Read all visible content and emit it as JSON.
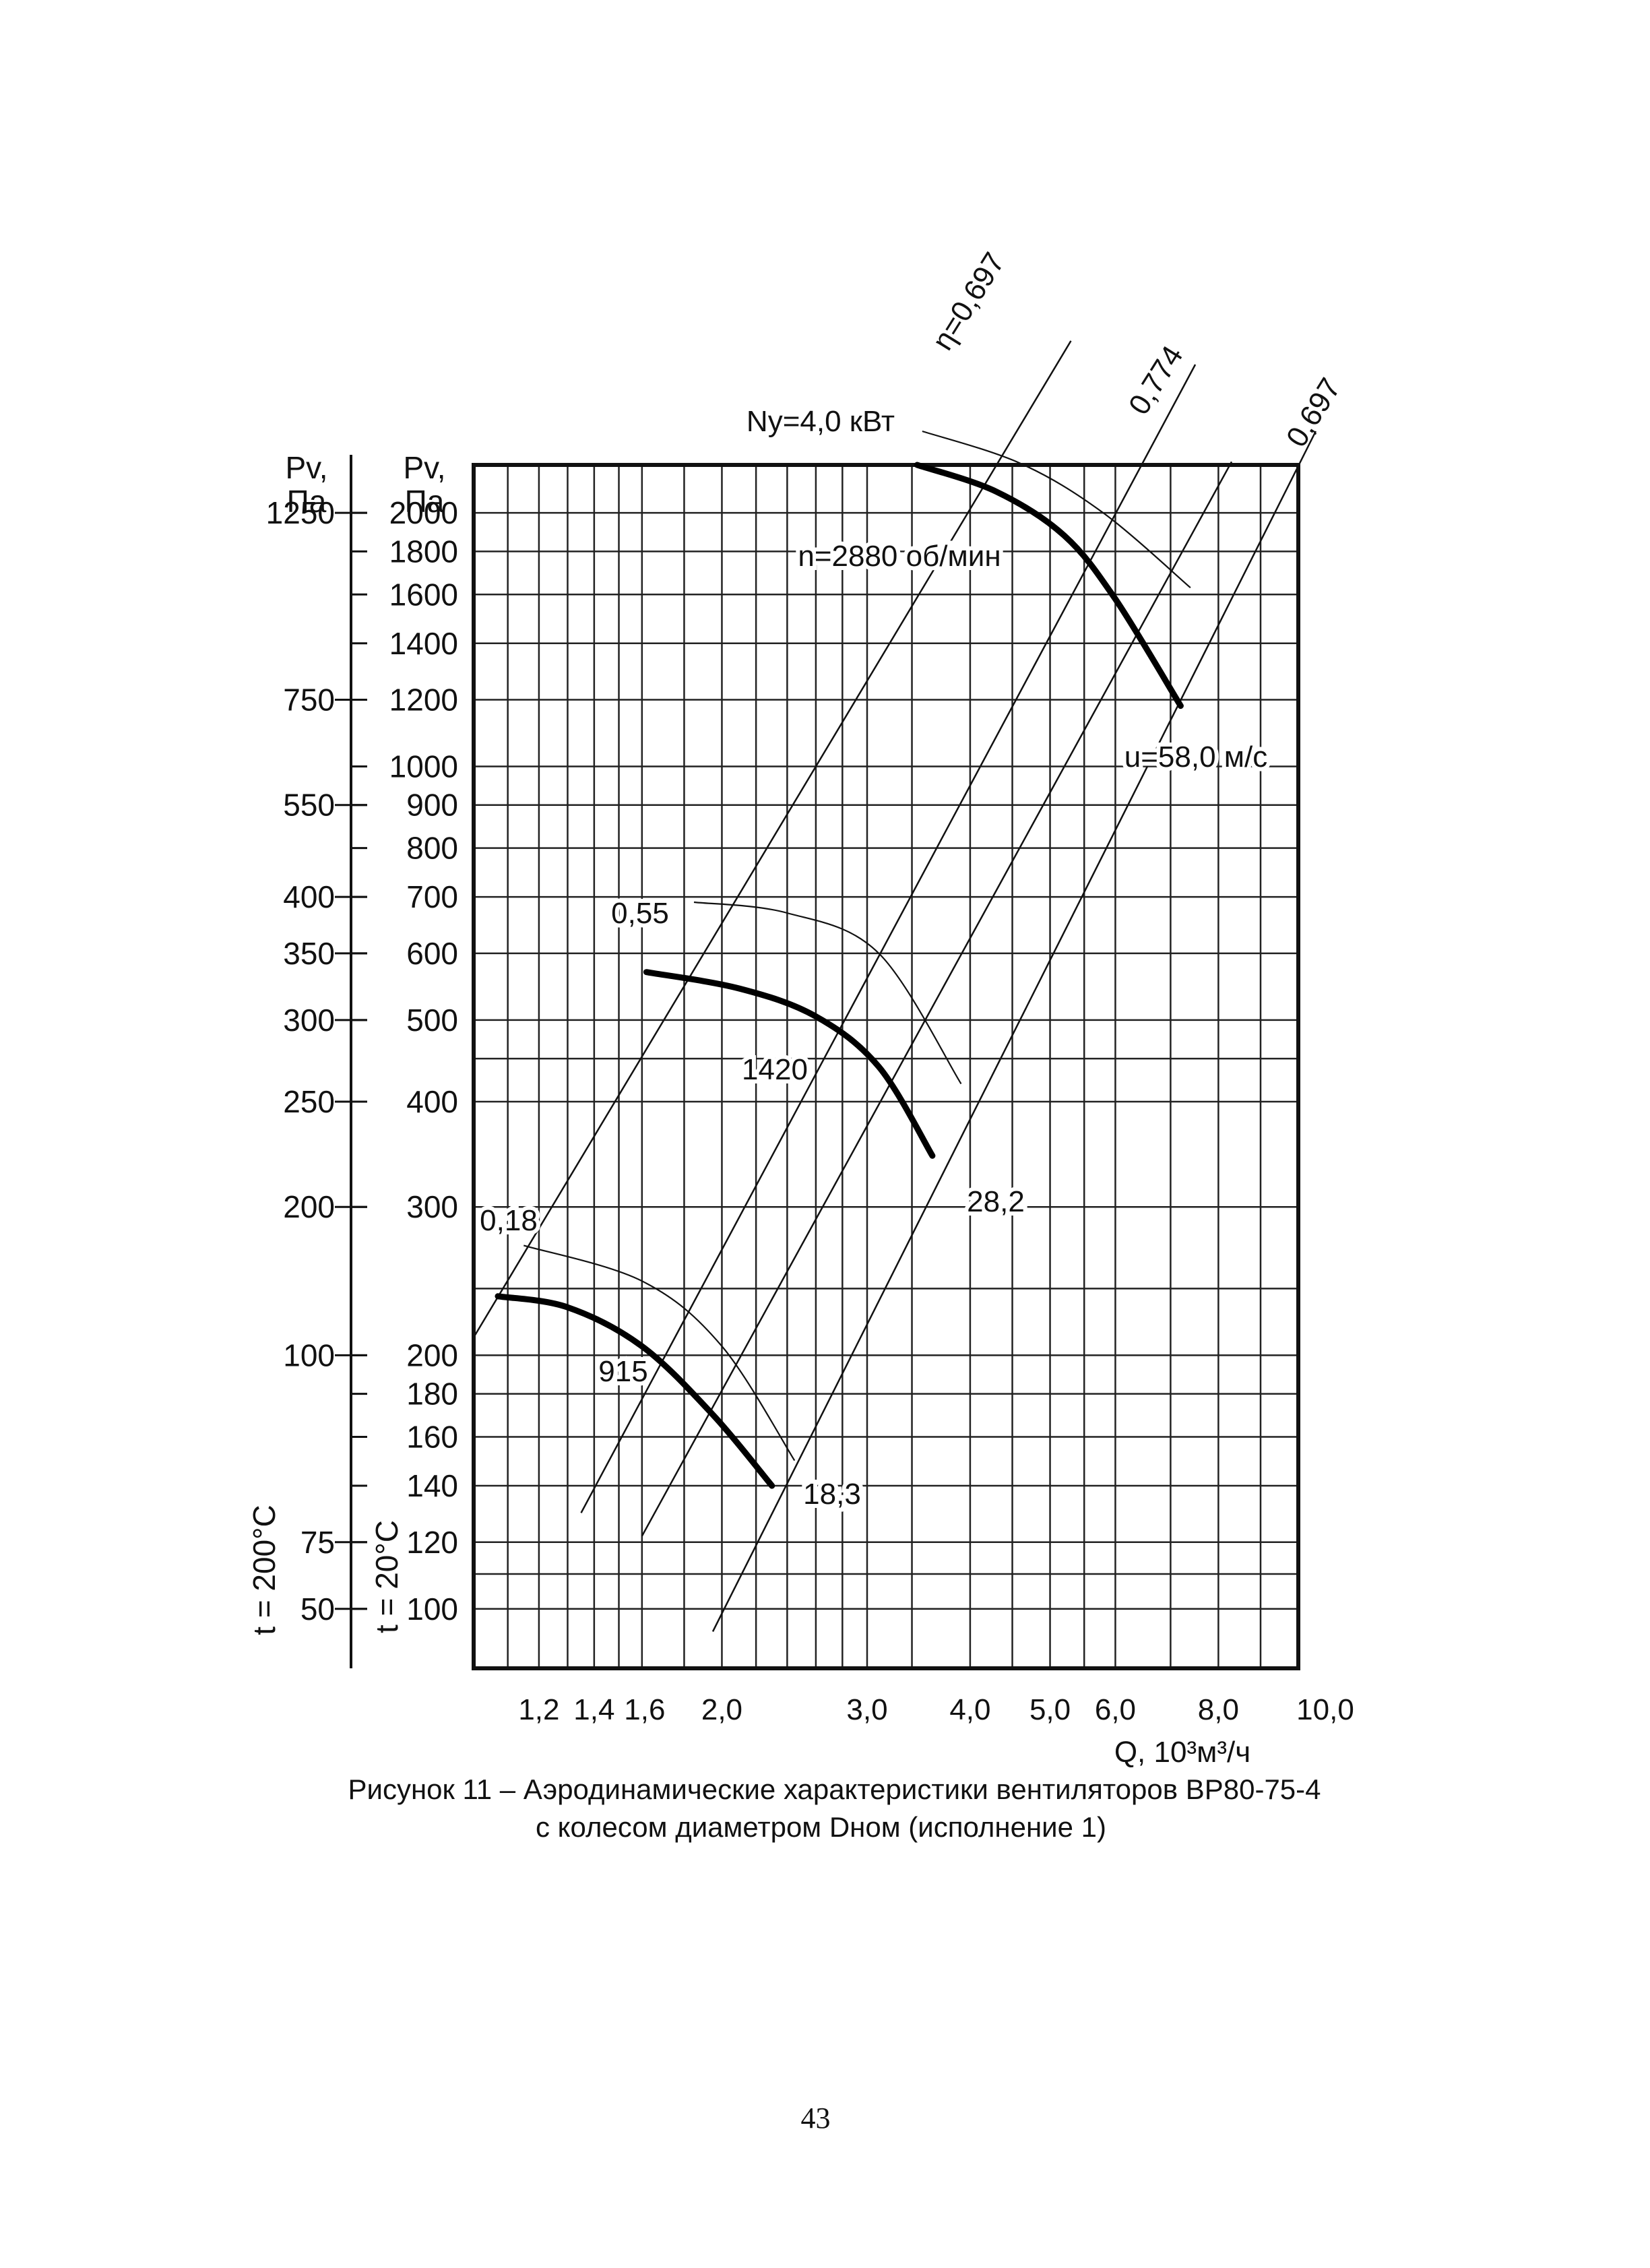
{
  "chart_data": {
    "type": "line",
    "title": "",
    "xlabel": "Q, 10³м³/ч",
    "x_scale": "log",
    "xlim": [
      1.0,
      10.0
    ],
    "x_ticks": [
      {
        "value": 1.2,
        "label": "1,2"
      },
      {
        "value": 1.4,
        "label": "1,4"
      },
      {
        "value": 1.6,
        "label": "1,6"
      },
      {
        "value": 2.0,
        "label": "2,0"
      },
      {
        "value": 3.0,
        "label": "3,0"
      },
      {
        "value": 4.0,
        "label": "4,0"
      },
      {
        "value": 5.0,
        "label": "5,0"
      },
      {
        "value": 6.0,
        "label": "6,0"
      },
      {
        "value": 8.0,
        "label": "8,0"
      },
      {
        "value": 10.0,
        "label": "10,0"
      }
    ],
    "y_scale": "log",
    "ylim": [
      85,
      2280
    ],
    "y_axis_20": {
      "header": "Pv, Па",
      "temperature_label": "t = 20°C",
      "ticks": [
        {
          "value": 100,
          "label": "100"
        },
        {
          "value": 120,
          "label": "120"
        },
        {
          "value": 140,
          "label": "140"
        },
        {
          "value": 160,
          "label": "160"
        },
        {
          "value": 180,
          "label": "180"
        },
        {
          "value": 200,
          "label": "200"
        },
        {
          "value": 300,
          "label": "300"
        },
        {
          "value": 400,
          "label": "400"
        },
        {
          "value": 500,
          "label": "500"
        },
        {
          "value": 600,
          "label": "600"
        },
        {
          "value": 700,
          "label": "700"
        },
        {
          "value": 800,
          "label": "800"
        },
        {
          "value": 900,
          "label": "900"
        },
        {
          "value": 1000,
          "label": "1000"
        },
        {
          "value": 1200,
          "label": "1200"
        },
        {
          "value": 1400,
          "label": "1400"
        },
        {
          "value": 1600,
          "label": "1600"
        },
        {
          "value": 1800,
          "label": "1800"
        },
        {
          "value": 2000,
          "label": "2000"
        }
      ]
    },
    "y_axis_200": {
      "header": "Pv, Па",
      "temperature_label": "t = 200°C",
      "ticks": [
        {
          "value": 50,
          "at": 100,
          "label": "50"
        },
        {
          "value": 75,
          "at": 120,
          "label": "75"
        },
        {
          "value": 100,
          "at": 200,
          "label": "100"
        },
        {
          "value": 200,
          "at": 300,
          "label": "200"
        },
        {
          "value": 250,
          "at": 400,
          "label": "250"
        },
        {
          "value": 300,
          "at": 500,
          "label": "300"
        },
        {
          "value": 350,
          "at": 600,
          "label": "350"
        },
        {
          "value": 400,
          "at": 700,
          "label": "400"
        },
        {
          "value": 550,
          "at": 900,
          "label": "550"
        },
        {
          "value": 750,
          "at": 1200,
          "label": "750"
        },
        {
          "value": 1250,
          "at": 2000,
          "label": "1250"
        }
      ]
    },
    "grid": true,
    "grid_x": [
      1.1,
      1.2,
      1.3,
      1.4,
      1.5,
      1.6,
      1.8,
      2.0,
      2.2,
      2.4,
      2.6,
      2.8,
      3.0,
      3.4,
      4.0,
      4.5,
      5.0,
      5.5,
      6.0,
      7.0,
      8.0,
      9.0
    ],
    "grid_y": [
      100,
      110,
      120,
      140,
      160,
      180,
      200,
      240,
      300,
      400,
      450,
      500,
      600,
      700,
      800,
      900,
      1000,
      1200,
      1400,
      1600,
      1800,
      2000
    ],
    "series": [
      {
        "name": "n=2880 об/мин",
        "label": "n=2880 об/мин",
        "points": [
          [
            3.45,
            2280
          ],
          [
            4.3,
            2120
          ],
          [
            5.2,
            1880
          ],
          [
            6.0,
            1580
          ],
          [
            7.2,
            1180
          ]
        ]
      },
      {
        "name": "1420",
        "label": "1420",
        "points": [
          [
            1.62,
            570
          ],
          [
            2.1,
            545
          ],
          [
            2.6,
            505
          ],
          [
            3.1,
            440
          ],
          [
            3.6,
            345
          ]
        ]
      },
      {
        "name": "915",
        "label": "915",
        "points": [
          [
            1.07,
            235
          ],
          [
            1.3,
            228
          ],
          [
            1.6,
            205
          ],
          [
            1.95,
            170
          ],
          [
            2.3,
            140
          ]
        ]
      }
    ],
    "curve_annotations": [
      {
        "text": "Ny=4,0 кВт",
        "series": "n=2880 об/мин",
        "at": "start"
      },
      {
        "text": "u=58,0 м/с",
        "series": "n=2880 об/мин",
        "at": "end"
      },
      {
        "text": "0,55",
        "series": "1420",
        "at": "start"
      },
      {
        "text": "28,2",
        "series": "1420",
        "at": "end"
      },
      {
        "text": "0,18",
        "series": "915",
        "at": "start"
      },
      {
        "text": "18,3",
        "series": "915",
        "at": "end"
      }
    ],
    "efficiency_lines": [
      {
        "label": "η=0,697",
        "points": [
          [
            1.0,
            210
          ],
          [
            5.3,
            3200
          ]
        ]
      },
      {
        "label": "0,774",
        "points": [
          [
            1.35,
            130
          ],
          [
            7.5,
            3000
          ]
        ]
      },
      {
        "label": "0,697",
        "points": [
          [
            1.95,
            94
          ],
          [
            10.5,
            2500
          ]
        ]
      },
      {
        "label": "",
        "points": [
          [
            1.6,
            122
          ],
          [
            8.3,
            2300
          ]
        ]
      }
    ],
    "power_lines": [
      {
        "series": "n=2880 об/мин",
        "points": [
          [
            3.5,
            2500
          ],
          [
            4.6,
            2290
          ],
          [
            5.8,
            2000
          ],
          [
            7.4,
            1630
          ]
        ]
      },
      {
        "series": "1420",
        "points": [
          [
            1.85,
            690
          ],
          [
            2.4,
            670
          ],
          [
            3.1,
            600
          ],
          [
            3.9,
            420
          ]
        ]
      },
      {
        "series": "915",
        "points": [
          [
            1.15,
            270
          ],
          [
            1.6,
            245
          ],
          [
            2.0,
            205
          ],
          [
            2.45,
            150
          ]
        ]
      }
    ]
  },
  "caption": {
    "line1": "Рисунок 11 – Аэродинамические характеристики вентиляторов ВР80-75-4",
    "line2": "с колесом диаметром Dном (исполнение 1)"
  },
  "page_number": "43"
}
